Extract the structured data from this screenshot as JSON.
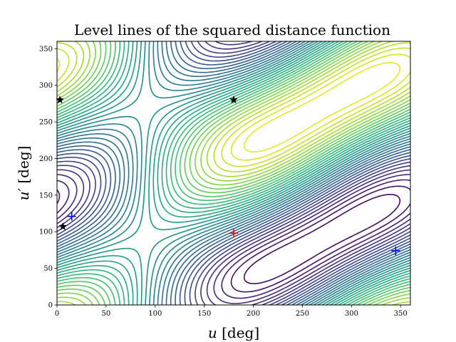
{
  "chart_data": {
    "type": "contour",
    "title": "Level lines of the squared distance function",
    "xlabel": "u [deg]",
    "ylabel": "u′ [deg]",
    "xlim": [
      0,
      360
    ],
    "ylim": [
      0,
      360
    ],
    "xticks": [
      0,
      50,
      100,
      150,
      200,
      250,
      300,
      350
    ],
    "yticks": [
      0,
      50,
      100,
      150,
      200,
      250,
      300,
      350
    ],
    "grid": false,
    "colormap": "viridis",
    "markers": [
      {
        "kind": "plus",
        "color": "#ff0000",
        "x": 180,
        "y": 98
      },
      {
        "kind": "plus",
        "color": "#0000ff",
        "x": 15,
        "y": 121
      },
      {
        "kind": "plus",
        "color": "#0000ff",
        "x": 345,
        "y": 74
      },
      {
        "kind": "star",
        "color": "#000000",
        "x": 180,
        "y": 280
      },
      {
        "kind": "star",
        "color": "#000000",
        "x": 3,
        "y": 280
      },
      {
        "kind": "star",
        "color": "#000000",
        "x": 6,
        "y": 107
      }
    ]
  }
}
